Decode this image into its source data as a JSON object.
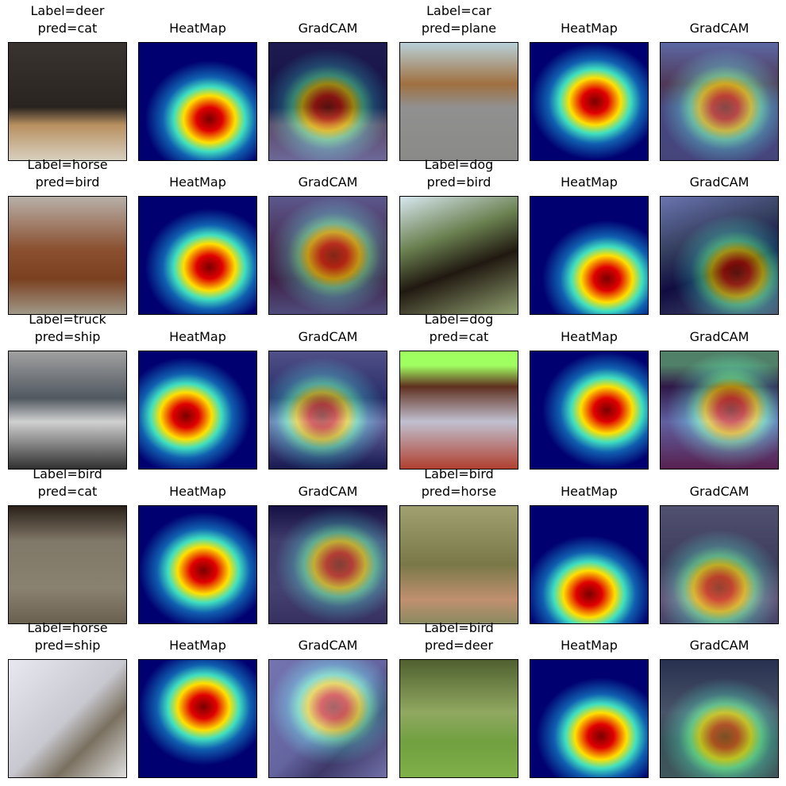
{
  "rows": [
    [
      {
        "lines": [
          "Label=deer",
          "pred=cat"
        ]
      },
      {
        "lines": [
          "HeatMap"
        ]
      },
      {
        "lines": [
          "GradCAM"
        ]
      },
      {
        "lines": [
          "Label=car",
          "pred=plane"
        ]
      },
      {
        "lines": [
          "HeatMap"
        ]
      },
      {
        "lines": [
          "GradCAM"
        ]
      }
    ],
    [
      {
        "lines": [
          "Label=horse",
          "pred=bird"
        ]
      },
      {
        "lines": [
          "HeatMap"
        ]
      },
      {
        "lines": [
          "GradCAM"
        ]
      },
      {
        "lines": [
          "Label=dog",
          "pred=bird"
        ]
      },
      {
        "lines": [
          "HeatMap"
        ]
      },
      {
        "lines": [
          "GradCAM"
        ]
      }
    ],
    [
      {
        "lines": [
          "Label=truck",
          "pred=ship"
        ]
      },
      {
        "lines": [
          "HeatMap"
        ]
      },
      {
        "lines": [
          "GradCAM"
        ]
      },
      {
        "lines": [
          "Label=dog",
          "pred=cat"
        ]
      },
      {
        "lines": [
          "HeatMap"
        ]
      },
      {
        "lines": [
          "GradCAM"
        ]
      }
    ],
    [
      {
        "lines": [
          "Label=bird",
          "pred=cat"
        ]
      },
      {
        "lines": [
          "HeatMap"
        ]
      },
      {
        "lines": [
          "GradCAM"
        ]
      },
      {
        "lines": [
          "Label=bird",
          "pred=horse"
        ]
      },
      {
        "lines": [
          "HeatMap"
        ]
      },
      {
        "lines": [
          "GradCAM"
        ]
      }
    ],
    [
      {
        "lines": [
          "Label=horse",
          "pred=ship"
        ]
      },
      {
        "lines": [
          "HeatMap"
        ]
      },
      {
        "lines": [
          "GradCAM"
        ]
      },
      {
        "lines": [
          "Label=bird",
          "pred=deer"
        ]
      },
      {
        "lines": [
          "HeatMap"
        ]
      },
      {
        "lines": [
          "GradCAM"
        ]
      }
    ]
  ]
}
